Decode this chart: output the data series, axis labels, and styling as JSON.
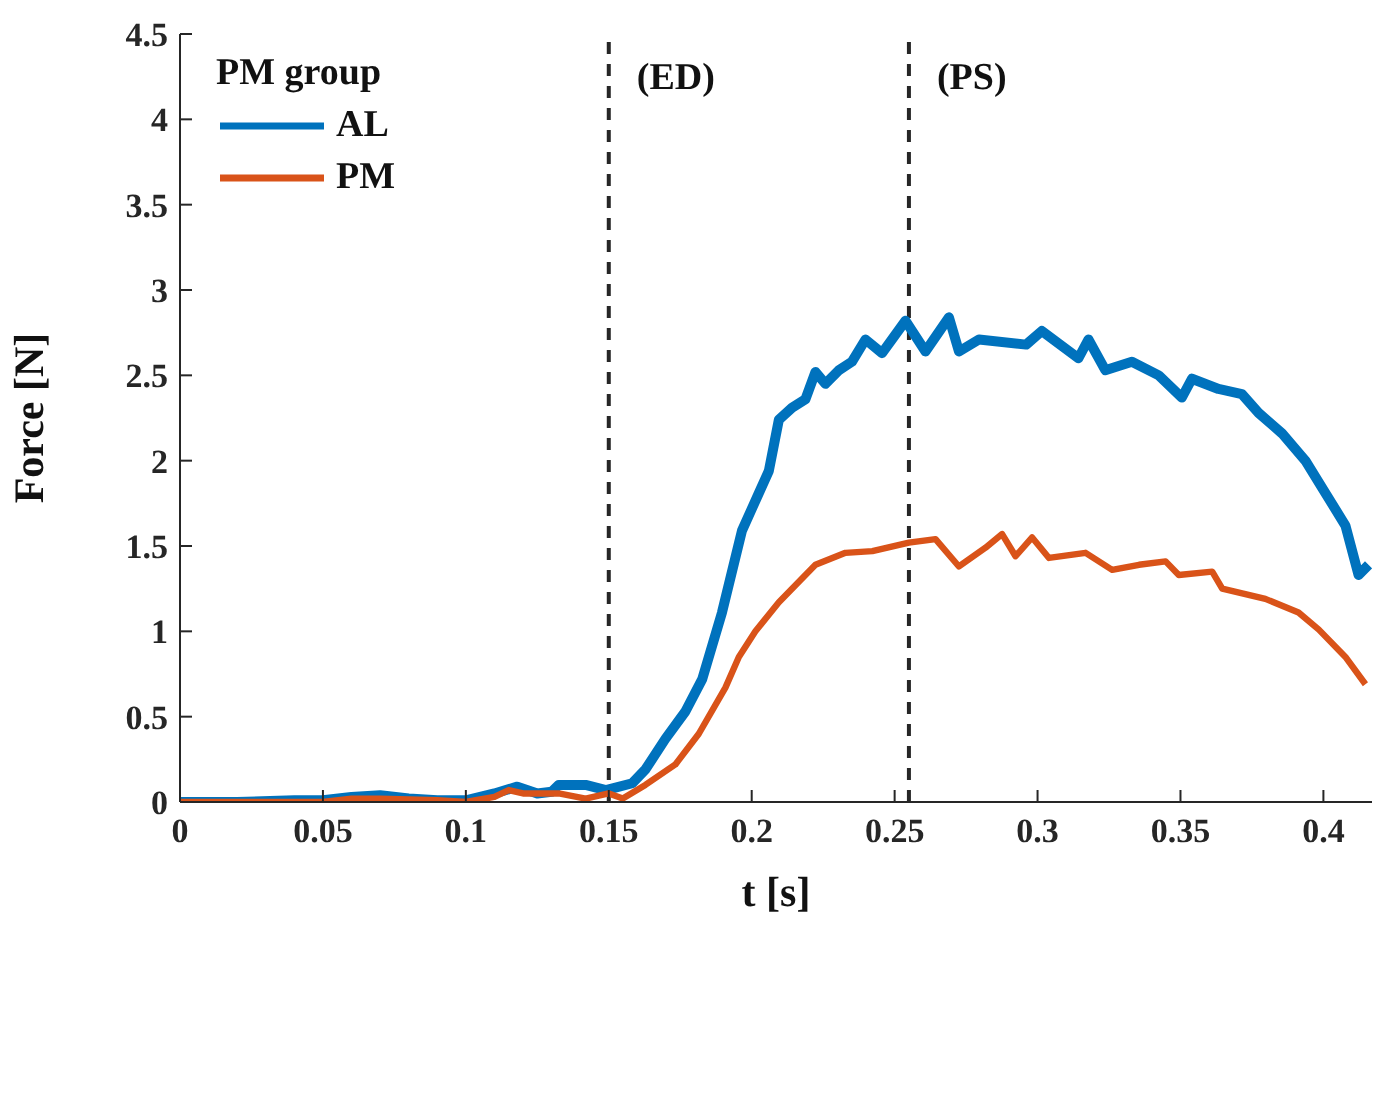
{
  "chart_data": {
    "type": "line",
    "xlabel": "t [s]",
    "ylabel": "Force [N]",
    "legend_title": "PM group",
    "legend": "top left",
    "grid": false,
    "xlim": [
      0,
      0.417
    ],
    "xticks": [
      0,
      0.05,
      0.1,
      0.15,
      0.2,
      0.25,
      0.3,
      0.35,
      0.4
    ],
    "ylim": [
      0,
      4.5
    ],
    "yticks": [
      0,
      0.5,
      1,
      1.5,
      2,
      2.5,
      3,
      3.5,
      4,
      4.5
    ],
    "ref_lines": [
      {
        "axis": "x",
        "value": 0.15,
        "color": "#262626",
        "line_style": "dashed"
      },
      {
        "axis": "x",
        "value": 0.255,
        "color": "#262626",
        "line_style": "dashed"
      }
    ],
    "annotations": [
      "(ED)",
      "(PS)"
    ],
    "series": [
      {
        "name": "AL",
        "color": "#0072bd",
        "x": [
          0,
          0.02,
          0.04,
          0.05,
          0.06,
          0.07,
          0.08,
          0.09,
          0.1,
          0.11,
          0.118,
          0.125,
          0.13,
          0.1325,
          0.1419,
          0.149,
          0.1582,
          0.1628,
          0.1698,
          0.1768,
          0.1827,
          0.1896,
          0.1966,
          0.2025,
          0.206,
          0.2095,
          0.2141,
          0.2188,
          0.2223,
          0.2258,
          0.2305,
          0.2351,
          0.2398,
          0.2456,
          0.2538,
          0.2608,
          0.269,
          0.2725,
          0.2795,
          0.296,
          0.3015,
          0.3143,
          0.3178,
          0.3237,
          0.333,
          0.3424,
          0.3505,
          0.354,
          0.3633,
          0.3715,
          0.3773,
          0.3855,
          0.3937,
          0.4007,
          0.4077,
          0.4123,
          0.4158
        ],
        "values": [
          0,
          0,
          0.01,
          0.01,
          0.03,
          0.04,
          0.02,
          0.01,
          0.01,
          0.05,
          0.09,
          0.05,
          0.06,
          0.1,
          0.1,
          0.07,
          0.11,
          0.19,
          0.37,
          0.53,
          0.72,
          1.11,
          1.59,
          1.81,
          1.94,
          2.24,
          2.31,
          2.36,
          2.52,
          2.45,
          2.53,
          2.58,
          2.71,
          2.63,
          2.82,
          2.64,
          2.84,
          2.64,
          2.71,
          2.68,
          2.76,
          2.6,
          2.71,
          2.53,
          2.58,
          2.5,
          2.37,
          2.48,
          2.42,
          2.39,
          2.28,
          2.16,
          2,
          1.81,
          1.62,
          1.33,
          1.39
        ]
      },
      {
        "name": "PM",
        "color": "#d95319",
        "x": [
          0,
          0.05,
          0.06,
          0.07,
          0.09,
          0.1,
          0.11,
          0.115,
          0.12,
          0.128,
          0.1325,
          0.1419,
          0.15,
          0.1549,
          0.1628,
          0.1733,
          0.1815,
          0.1908,
          0.1955,
          0.2013,
          0.2095,
          0.2153,
          0.2223,
          0.2328,
          0.2422,
          0.255,
          0.2643,
          0.2725,
          0.2818,
          0.2876,
          0.2923,
          0.2981,
          0.304,
          0.3168,
          0.3261,
          0.3355,
          0.3448,
          0.3494,
          0.3611,
          0.3646,
          0.3797,
          0.3913,
          0.3984,
          0.4077,
          0.4147
        ],
        "values": [
          0,
          0,
          0.02,
          0.02,
          0.01,
          0,
          0.03,
          0.07,
          0.05,
          0.05,
          0.05,
          0.02,
          0.05,
          0.02,
          0.1,
          0.22,
          0.4,
          0.67,
          0.85,
          1,
          1.17,
          1.27,
          1.39,
          1.46,
          1.47,
          1.52,
          1.54,
          1.38,
          1.49,
          1.57,
          1.44,
          1.55,
          1.43,
          1.46,
          1.36,
          1.39,
          1.41,
          1.33,
          1.35,
          1.25,
          1.19,
          1.11,
          1.01,
          0.85,
          0.69
        ]
      }
    ]
  }
}
